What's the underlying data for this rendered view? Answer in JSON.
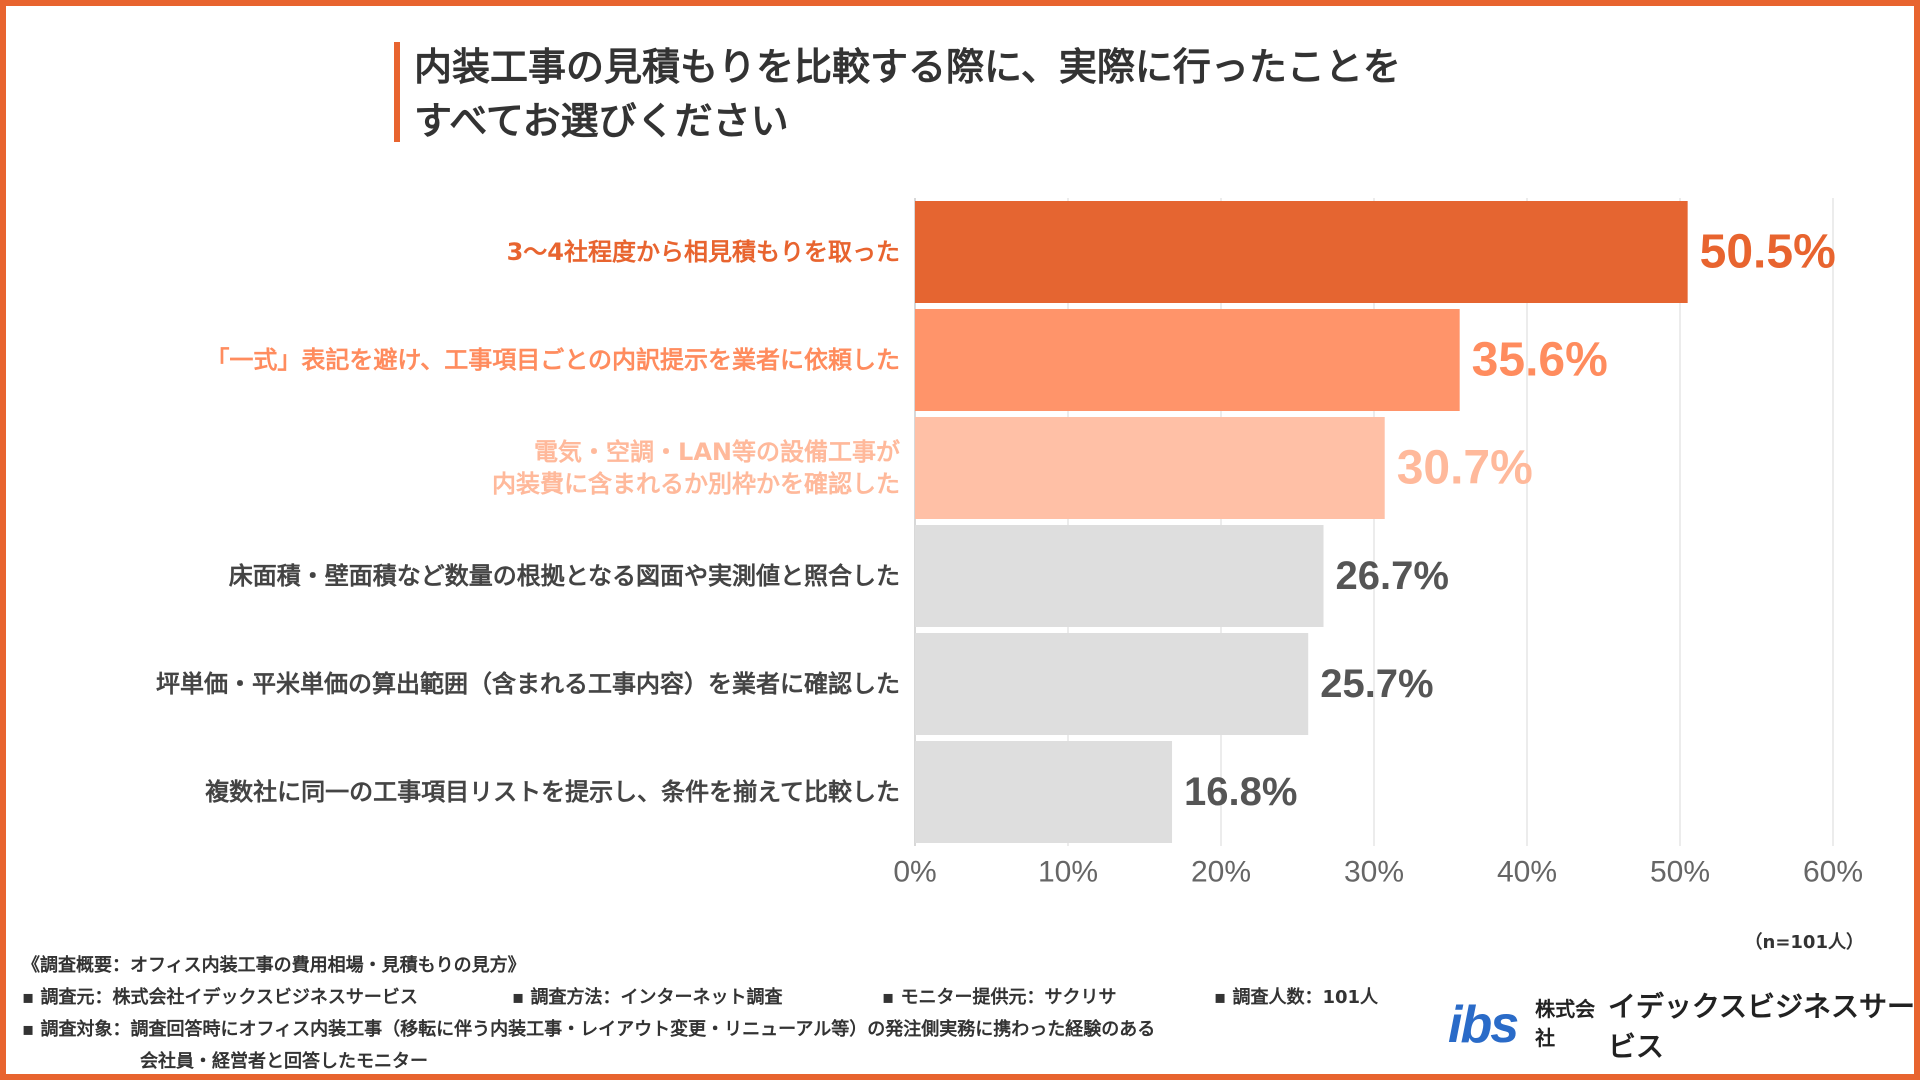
{
  "title": {
    "line1": "内装工事の見積もりを比較する際に、実際に行ったことを",
    "line2": "すべてお選びください"
  },
  "chart_data": {
    "type": "bar",
    "orientation": "horizontal",
    "categories": [
      [
        "3～4社程度から相見積もりを取った"
      ],
      [
        "「一式」表記を避け、工事項目ごとの内訳提示を業者に依頼した"
      ],
      [
        "電気・空調・LAN等の設備工事が",
        "内装費に含まれるか別枠かを確認した"
      ],
      [
        "床面積・壁面積など数量の根拠となる図面や実測値と照合した"
      ],
      [
        "坪単価・平米単価の算出範囲（含まれる工事内容）を業者に確認した"
      ],
      [
        "複数社に同一の工事項目リストを提示し、条件を揃えて比較した"
      ]
    ],
    "values": [
      50.5,
      35.6,
      30.7,
      26.7,
      25.7,
      16.8
    ],
    "value_labels": [
      "50.5%",
      "35.6%",
      "30.7%",
      "26.7%",
      "25.7%",
      "16.8%"
    ],
    "bar_colors": [
      "#E56531",
      "#FF946A",
      "#FFC0A6",
      "#DEDEDE",
      "#DEDEDE",
      "#DEDEDE"
    ],
    "label_colors": [
      "#E8642F",
      "#FF8C5E",
      "#FFB99B",
      "#444444",
      "#444444",
      "#444444"
    ],
    "value_colors": [
      "#E8642F",
      "#FF8C5E",
      "#FFB99B",
      "#555555",
      "#555555",
      "#555555"
    ],
    "xlim": [
      0,
      60
    ],
    "xticks": [
      0,
      10,
      20,
      30,
      40,
      50,
      60
    ],
    "xtick_labels": [
      "0%",
      "10%",
      "20%",
      "30%",
      "40%",
      "50%",
      "60%"
    ],
    "grid": true
  },
  "sample_note": "（n=101人）",
  "footer": {
    "overview": "《調査概要：オフィス内装工事の費用相場・見積もりの見方》",
    "source": "▪ 調査元：株式会社イデックスビジネスサービス",
    "method": "▪ 調査方法：インターネット調査",
    "monitor": "▪ モニター提供元：サクリサ",
    "count": "▪ 調査人数：101人",
    "target1": "▪ 調査対象：調査回答時にオフィス内装工事（移転に伴う内装工事・レイアウト変更・リニューアル等）の発注側実務に携わった経験のある",
    "target2": "会社員・経営者と回答したモニター"
  },
  "logo": {
    "mark": "ibs",
    "company_prefix": "株式会社",
    "company_name": "イデックスビジネスサービス",
    "mark_color": "#2A6BC8"
  },
  "colors": {
    "accent": "#E8642F"
  }
}
